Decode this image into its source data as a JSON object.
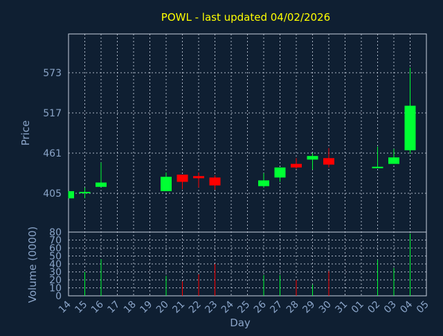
{
  "chart_data": {
    "type": "candlestick",
    "title": "POWL - last updated 04/02/2026",
    "xlabel": "Day",
    "price_axis": {
      "label": "Price",
      "ticks": [
        405,
        461,
        517,
        573
      ],
      "range": [
        351,
        627
      ]
    },
    "volume_axis": {
      "label": "Volume (0000)",
      "ticks": [
        0,
        10,
        20,
        30,
        40,
        50,
        60,
        70,
        80
      ],
      "range": [
        0,
        80
      ]
    },
    "x_tick_labels": [
      "14",
      "15",
      "16",
      "17",
      "18",
      "19",
      "20",
      "21",
      "22",
      "23",
      "24",
      "25",
      "26",
      "27",
      "28",
      "29",
      "30",
      "31",
      "01",
      "02",
      "03",
      "04",
      "05"
    ],
    "candles": [
      {
        "day": "14",
        "open": 398,
        "close": 408,
        "high": 408,
        "low": 398,
        "volume": 0
      },
      {
        "day": "15",
        "open": 406,
        "close": 407,
        "high": 413,
        "low": 398,
        "volume": 30
      },
      {
        "day": "16",
        "open": 414,
        "close": 420,
        "high": 448,
        "low": 414,
        "volume": 46
      },
      {
        "day": "20",
        "open": 408,
        "close": 428,
        "high": 434,
        "low": 408,
        "volume": 25
      },
      {
        "day": "21",
        "open": 431,
        "close": 421,
        "high": 431,
        "low": 411,
        "volume": 18
      },
      {
        "day": "22",
        "open": 429,
        "close": 426,
        "high": 434,
        "low": 413,
        "volume": 27
      },
      {
        "day": "23",
        "open": 427,
        "close": 416,
        "high": 430,
        "low": 410,
        "volume": 40
      },
      {
        "day": "26",
        "open": 415,
        "close": 423,
        "high": 433,
        "low": 413,
        "volume": 26
      },
      {
        "day": "27",
        "open": 427,
        "close": 441,
        "high": 441,
        "low": 421,
        "volume": 26
      },
      {
        "day": "28",
        "open": 446,
        "close": 441,
        "high": 454,
        "low": 439,
        "volume": 20
      },
      {
        "day": "29",
        "open": 452,
        "close": 457,
        "high": 461,
        "low": 438,
        "volume": 14
      },
      {
        "day": "30",
        "open": 454,
        "close": 445,
        "high": 468,
        "low": 441,
        "volume": 31
      },
      {
        "day": "02",
        "open": 440,
        "close": 442,
        "high": 470,
        "low": 440,
        "volume": 45
      },
      {
        "day": "03",
        "open": 446,
        "close": 455,
        "high": 467,
        "low": 446,
        "volume": 35
      },
      {
        "day": "04",
        "open": 465,
        "close": 527,
        "high": 580,
        "low": 460,
        "volume": 78
      }
    ],
    "colors": {
      "up": "#00ff33",
      "down": "#ff0000",
      "background": "#0f1f32",
      "grid": "#c8d2e0",
      "title": "#ffff00",
      "labels": "#8aa4c8"
    },
    "grid": true
  }
}
